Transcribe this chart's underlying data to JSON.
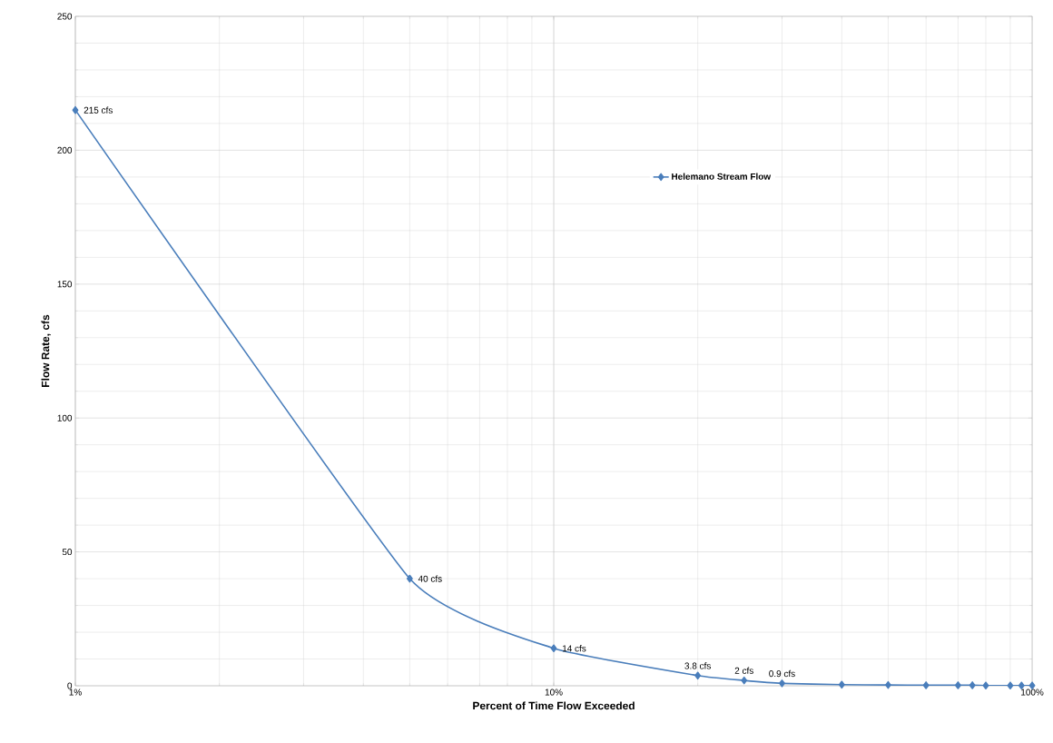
{
  "chart_data": {
    "type": "line",
    "xlabel": "Percent of Time Flow Exceeded",
    "ylabel": "Flow Rate, cfs",
    "x": [
      1,
      5,
      10,
      20,
      25,
      30,
      40,
      50,
      60,
      70,
      75,
      80,
      90,
      95,
      100
    ],
    "series": [
      {
        "name": "Helemano Stream Flow",
        "color": "#4a7ebb",
        "values": [
          215,
          40,
          14,
          3.8,
          2,
          0.9,
          0.4,
          0.3,
          0.2,
          0.2,
          0.2,
          0.1,
          0.1,
          0.1,
          0.1
        ],
        "value_labels": [
          "215 cfs",
          "40 cfs",
          "14 cfs",
          "3.8 cfs",
          "2 cfs",
          "0.9 cfs",
          null,
          null,
          null,
          null,
          null,
          null,
          null,
          null,
          null
        ]
      }
    ],
    "log": "x",
    "xlim": [
      1,
      100
    ],
    "ylim": [
      0,
      250
    ],
    "xticks": [
      {
        "value": 1,
        "label": "1%"
      },
      {
        "value": 10,
        "label": "10%"
      },
      {
        "value": 100,
        "label": "100%"
      }
    ],
    "yticks": [
      0,
      50,
      100,
      150,
      200,
      250
    ],
    "grid": true,
    "legend": "top right",
    "marker": "diamond"
  }
}
